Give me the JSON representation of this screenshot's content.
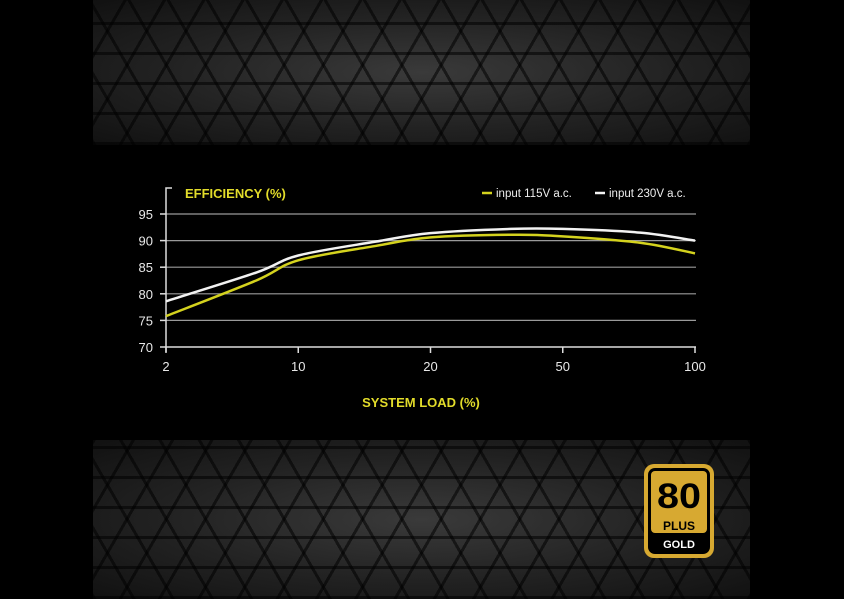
{
  "chart_data": {
    "type": "line",
    "title": "EFFICIENCY (%)",
    "xlabel": "SYSTEM LOAD (%)",
    "ylabel": "EFFICIENCY (%)",
    "x_ticks": [
      2,
      10,
      20,
      50,
      100
    ],
    "y_ticks": [
      70,
      75,
      80,
      85,
      90,
      95
    ],
    "ylim": [
      70,
      97
    ],
    "grid": true,
    "legend_position": "top-right",
    "colors": {
      "115": "#d4d21e",
      "230": "#f2f2f2",
      "accent": "#e2dc2a"
    },
    "x": [
      2,
      6,
      10,
      15,
      20,
      35,
      50,
      75,
      100
    ],
    "series": [
      {
        "name": "input 115V a.c.",
        "color": "#d4d21e",
        "values": [
          75.8,
          82.5,
          86.3,
          89.0,
          90.6,
          91.1,
          90.8,
          89.6,
          87.6
        ]
      },
      {
        "name": "input 230V a.c.",
        "color": "#f2f2f2",
        "values": [
          78.6,
          84.0,
          87.2,
          89.8,
          91.4,
          92.2,
          92.2,
          91.5,
          90.0
        ]
      }
    ]
  },
  "badge": {
    "number": "80",
    "plus": "PLUS",
    "grade": "GOLD"
  }
}
